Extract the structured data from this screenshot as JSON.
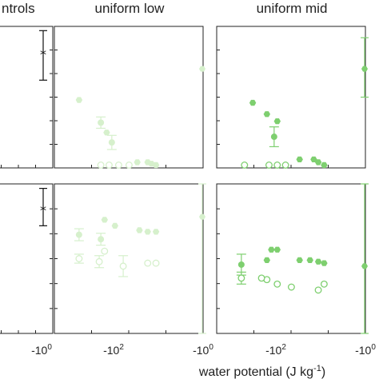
{
  "chart_data": {
    "type": "scatter",
    "panel_titles": [
      "ntrols",
      "uniform low",
      "uniform mid"
    ],
    "xlabel_text": "water potential (J kg",
    "xlabel_exp": "-1",
    "xlabel_close": ")",
    "x_ticks": [
      {
        "base": "-10",
        "exp": "0"
      },
      {
        "base": "-10",
        "exp": "2"
      },
      {
        "base": "-10",
        "exp": "0"
      },
      {
        "base": "-10",
        "exp": "2"
      },
      {
        "base": "-10",
        "exp": "0"
      }
    ],
    "x_scale": "symlog-negative",
    "panels": [
      {
        "id": "controls-top",
        "row": 0,
        "col": 0,
        "color": "#111111",
        "controls": [
          {
            "y": 0.8,
            "lo": 0.62,
            "hi": 0.97,
            "marker": "star"
          }
        ],
        "filled": [],
        "open": []
      },
      {
        "id": "controls-bottom",
        "row": 1,
        "col": 0,
        "color": "#111111",
        "controls": [
          {
            "y": 0.82,
            "lo": 0.72,
            "hi": 0.97,
            "marker": "star"
          }
        ],
        "filled": [],
        "open": []
      },
      {
        "id": "uniform-low-top",
        "row": 0,
        "col": 1,
        "color": "#d6f0cc",
        "filled": [
          {
            "x": -8,
            "y": 0.02
          },
          {
            "x": -10,
            "y": 0.03
          },
          {
            "x": -12,
            "y": 0.04
          },
          {
            "x": -20,
            "y": 0.04
          },
          {
            "x": -70,
            "y": 0.18,
            "err": 0.05
          },
          {
            "x": -90,
            "y": 0.25
          },
          {
            "x": -120,
            "y": 0.32,
            "err": 0.04
          },
          {
            "x": -350,
            "y": 0.48
          }
        ],
        "open": [
          {
            "x": -30,
            "y": 0.02
          },
          {
            "x": -50,
            "y": 0.02
          },
          {
            "x": -80,
            "y": 0.02
          },
          {
            "x": -120,
            "y": 0.02
          }
        ],
        "controls": [
          {
            "y": 0.7,
            "marker": "hex",
            "edge": true
          }
        ]
      },
      {
        "id": "uniform-low-bottom",
        "row": 1,
        "col": 1,
        "color": "#d6f0cc",
        "filled": [
          {
            "x": -8,
            "y": 0.68
          },
          {
            "x": -12,
            "y": 0.68
          },
          {
            "x": -18,
            "y": 0.69
          },
          {
            "x": -60,
            "y": 0.72
          },
          {
            "x": -100,
            "y": 0.76
          },
          {
            "x": -120,
            "y": 0.63,
            "err": 0.04
          },
          {
            "x": -350,
            "y": 0.66,
            "err": 0.04
          }
        ],
        "open": [
          {
            "x": -8,
            "y": 0.47
          },
          {
            "x": -12,
            "y": 0.47
          },
          {
            "x": -40,
            "y": 0.45,
            "err": 0.07
          },
          {
            "x": -100,
            "y": 0.55
          },
          {
            "x": -130,
            "y": 0.48,
            "err": 0.04
          },
          {
            "x": -350,
            "y": 0.5,
            "err": 0.03
          }
        ],
        "controls": [
          {
            "y": 0.78,
            "lo": 0.0,
            "hi": 1.0,
            "marker": "hex",
            "edge": true
          }
        ]
      },
      {
        "id": "uniform-mid-top",
        "row": 0,
        "col": 2,
        "color": "#7ecf6f",
        "filled": [
          {
            "x": -6,
            "y": 0.02
          },
          {
            "x": -8,
            "y": 0.04
          },
          {
            "x": -10,
            "y": 0.06
          },
          {
            "x": -20,
            "y": 0.06
          },
          {
            "x": -60,
            "y": 0.33
          },
          {
            "x": -70,
            "y": 0.22,
            "err": 0.07
          },
          {
            "x": -100,
            "y": 0.38
          },
          {
            "x": -200,
            "y": 0.46
          }
        ],
        "open": [
          {
            "x": -40,
            "y": 0.02
          },
          {
            "x": -60,
            "y": 0.02
          },
          {
            "x": -90,
            "y": 0.02
          },
          {
            "x": -300,
            "y": 0.02
          }
        ],
        "controls": [
          {
            "y": 0.7,
            "lo": 0.5,
            "hi": 0.92,
            "marker": "hex",
            "edge": true
          }
        ]
      },
      {
        "id": "uniform-mid-bottom",
        "row": 1,
        "col": 2,
        "color": "#7ecf6f",
        "filled": [
          {
            "x": -6,
            "y": 0.47
          },
          {
            "x": -8,
            "y": 0.48
          },
          {
            "x": -12,
            "y": 0.49
          },
          {
            "x": -20,
            "y": 0.49
          },
          {
            "x": -60,
            "y": 0.56
          },
          {
            "x": -80,
            "y": 0.56
          },
          {
            "x": -100,
            "y": 0.49
          },
          {
            "x": -350,
            "y": 0.46,
            "err": 0.07
          }
        ],
        "open": [
          {
            "x": -6,
            "y": 0.33
          },
          {
            "x": -8,
            "y": 0.29
          },
          {
            "x": -30,
            "y": 0.31
          },
          {
            "x": -60,
            "y": 0.33
          },
          {
            "x": -100,
            "y": 0.36
          },
          {
            "x": -130,
            "y": 0.37
          },
          {
            "x": -350,
            "y": 0.37,
            "err": 0.04
          }
        ],
        "controls": [
          {
            "y": 0.45,
            "lo": 0.0,
            "hi": 1.0,
            "marker": "hex",
            "edge": true
          }
        ]
      }
    ],
    "grid": false
  }
}
